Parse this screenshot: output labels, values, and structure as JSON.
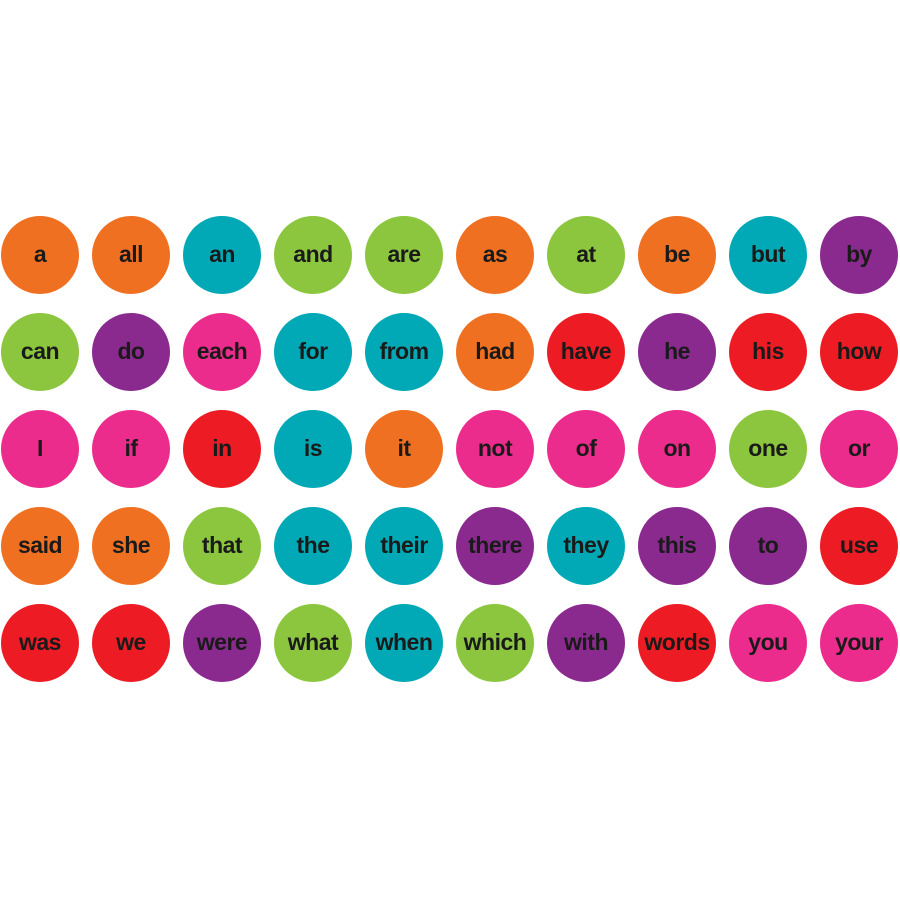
{
  "rows": [
    [
      {
        "word": "a",
        "color": "#f07022"
      },
      {
        "word": "all",
        "color": "#f07022"
      },
      {
        "word": "an",
        "color": "#00a9b5"
      },
      {
        "word": "and",
        "color": "#8cc63f"
      },
      {
        "word": "are",
        "color": "#8cc63f"
      },
      {
        "word": "as",
        "color": "#f07022"
      },
      {
        "word": "at",
        "color": "#8cc63f"
      },
      {
        "word": "be",
        "color": "#f07022"
      },
      {
        "word": "but",
        "color": "#00a9b5"
      },
      {
        "word": "by",
        "color": "#8a2a8f"
      }
    ],
    [
      {
        "word": "can",
        "color": "#8cc63f"
      },
      {
        "word": "do",
        "color": "#8a2a8f"
      },
      {
        "word": "each",
        "color": "#ec2c8c"
      },
      {
        "word": "for",
        "color": "#00a9b5"
      },
      {
        "word": "from",
        "color": "#00a9b5"
      },
      {
        "word": "had",
        "color": "#f07022"
      },
      {
        "word": "have",
        "color": "#ed1c24"
      },
      {
        "word": "he",
        "color": "#8a2a8f"
      },
      {
        "word": "his",
        "color": "#ed1c24"
      },
      {
        "word": "how",
        "color": "#ed1c24"
      }
    ],
    [
      {
        "word": "I",
        "color": "#ec2c8c"
      },
      {
        "word": "if",
        "color": "#ec2c8c"
      },
      {
        "word": "in",
        "color": "#ed1c24"
      },
      {
        "word": "is",
        "color": "#00a9b5"
      },
      {
        "word": "it",
        "color": "#f07022"
      },
      {
        "word": "not",
        "color": "#ec2c8c"
      },
      {
        "word": "of",
        "color": "#ec2c8c"
      },
      {
        "word": "on",
        "color": "#ec2c8c"
      },
      {
        "word": "one",
        "color": "#8cc63f"
      },
      {
        "word": "or",
        "color": "#ec2c8c"
      }
    ],
    [
      {
        "word": "said",
        "color": "#f07022"
      },
      {
        "word": "she",
        "color": "#f07022"
      },
      {
        "word": "that",
        "color": "#8cc63f"
      },
      {
        "word": "the",
        "color": "#00a9b5"
      },
      {
        "word": "their",
        "color": "#00a9b5"
      },
      {
        "word": "there",
        "color": "#8a2a8f"
      },
      {
        "word": "they",
        "color": "#00a9b5"
      },
      {
        "word": "this",
        "color": "#8a2a8f"
      },
      {
        "word": "to",
        "color": "#8a2a8f"
      },
      {
        "word": "use",
        "color": "#ed1c24"
      }
    ],
    [
      {
        "word": "was",
        "color": "#ed1c24"
      },
      {
        "word": "we",
        "color": "#ed1c24"
      },
      {
        "word": "were",
        "color": "#8a2a8f"
      },
      {
        "word": "what",
        "color": "#8cc63f"
      },
      {
        "word": "when",
        "color": "#00a9b5"
      },
      {
        "word": "which",
        "color": "#8cc63f"
      },
      {
        "word": "with",
        "color": "#8a2a8f"
      },
      {
        "word": "words",
        "color": "#ed1c24"
      },
      {
        "word": "you",
        "color": "#ec2c8c"
      },
      {
        "word": "your",
        "color": "#ec2c8c"
      }
    ]
  ]
}
